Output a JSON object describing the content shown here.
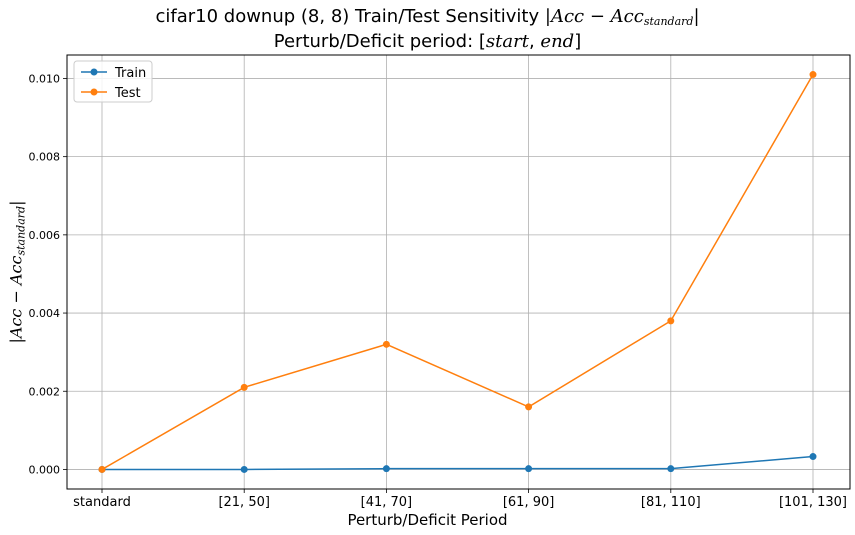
{
  "chart_data": {
    "type": "line",
    "title": {
      "prefix": "cifar10 downup (8, 8) Train/Test Sensitivity ",
      "bar": "|",
      "acc": "Acc",
      "minus": " − ",
      "sub": "standard",
      "line2_prefix": "Perturb/Deficit period: [",
      "start": "start",
      "comma": ", ",
      "end": "end",
      "line2_suffix": "]"
    },
    "xlabel": "Perturb/Deficit Period",
    "ylabel": {
      "bar": "|",
      "acc": "Acc",
      "minus": " − ",
      "sub": "standard"
    },
    "categories": [
      "standard",
      "[21, 50]",
      "[41, 70]",
      "[61, 90]",
      "[81, 110]",
      "[101, 130]"
    ],
    "y_ticks": [
      "0.000",
      "0.002",
      "0.004",
      "0.006",
      "0.008",
      "0.010"
    ],
    "ylim": [
      -0.0005,
      0.0106
    ],
    "grid": true,
    "legend_position": "top-left",
    "series": [
      {
        "name": "Train",
        "color": "#1f77b4",
        "values": [
          0.0,
          0.0,
          2e-05,
          2e-05,
          2e-05,
          0.00033
        ]
      },
      {
        "name": "Test",
        "color": "#ff7f0e",
        "values": [
          0.0,
          0.0021,
          0.0032,
          0.0016,
          0.0038,
          0.0101
        ]
      }
    ]
  }
}
